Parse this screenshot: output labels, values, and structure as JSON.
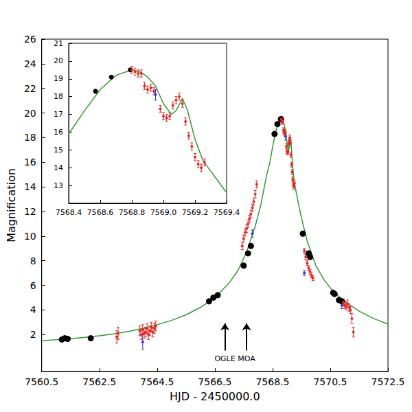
{
  "chart_data": [
    {
      "type": "scatter",
      "xlabel": "HJD - 2450000.0",
      "ylabel": "Magnification",
      "xlim": [
        7560.5,
        7572.5
      ],
      "xticks": [
        7560.5,
        7562.5,
        7564.5,
        7566.5,
        7568.5,
        7570.5,
        7572.5
      ],
      "ylim": [
        -1,
        26
      ],
      "yticks": [
        2,
        4,
        6,
        8,
        10,
        12,
        14,
        16,
        18,
        20,
        22,
        24,
        26
      ],
      "grid": false,
      "series": [
        {
          "type": "line",
          "color": "#339933",
          "line_style": "solid",
          "x": [
            7560.5,
            7561,
            7561.5,
            7562,
            7562.5,
            7563,
            7563.5,
            7564,
            7564.5,
            7565,
            7565.5,
            7566,
            7566.5,
            7567,
            7567.3,
            7567.6,
            7567.9,
            7568.1,
            7568.3,
            7568.4,
            7568.5,
            7568.6,
            7568.7,
            7568.8,
            7568.85,
            7568.9,
            7568.95,
            7569.0,
            7569.05,
            7569.08,
            7569.12,
            7569.15,
            7569.2,
            7569.25,
            7569.3,
            7569.4,
            7569.5,
            7569.7,
            7570,
            7570.3,
            7570.6,
            7571,
            7571.5,
            7572,
            7572.5
          ],
          "values": [
            1.5,
            1.58,
            1.67,
            1.77,
            1.9,
            2.05,
            2.25,
            2.5,
            2.8,
            3.15,
            3.6,
            4.2,
            5.0,
            6.2,
            7.2,
            8.7,
            10.8,
            12.6,
            15.0,
            15.9,
            17.2,
            18.4,
            19.2,
            19.5,
            19.4,
            19.1,
            18.6,
            17.6,
            17.0,
            17.2,
            17.9,
            17.3,
            15.6,
            14.4,
            13.8,
            12.6,
            11.5,
            9.6,
            7.6,
            6.4,
            5.5,
            4.7,
            3.9,
            3.3,
            2.85
          ]
        },
        {
          "type": "scatter",
          "color": "#000000",
          "marker": "circle",
          "x": [
            7561.2,
            7561.3,
            7561.4,
            7562.2,
            7566.3,
            7566.45,
            7566.6,
            7567.5,
            7567.65,
            7567.75,
            7568.57,
            7568.67,
            7568.79,
            7569.55,
            7569.75,
            7569.8,
            7570.6,
            7570.65,
            7570.8,
            7570.9
          ],
          "values": [
            1.6,
            1.7,
            1.65,
            1.7,
            4.7,
            5.0,
            5.2,
            7.6,
            8.6,
            9.2,
            18.3,
            19.1,
            19.5,
            10.2,
            8.6,
            8.3,
            5.4,
            5.3,
            4.8,
            4.7
          ]
        },
        {
          "type": "scatter",
          "color": "#ee2222",
          "marker": "circle",
          "x": [
            7563.1,
            7563.15,
            7563.9,
            7563.95,
            7564.0,
            7564.05,
            7564.1,
            7564.15,
            7564.2,
            7564.25,
            7564.3,
            7564.35,
            7564.4,
            7564.45,
            7567.45,
            7567.5,
            7567.55,
            7567.6,
            7567.65,
            7567.7,
            7567.75,
            7567.8,
            7567.85,
            7567.9,
            7567.95,
            7568.8,
            7568.82,
            7568.84,
            7568.86,
            7568.88,
            7568.9,
            7568.92,
            7568.94,
            7568.98,
            7569.0,
            7569.02,
            7569.04,
            7569.06,
            7569.08,
            7569.1,
            7569.12,
            7569.14,
            7569.16,
            7569.18,
            7569.2,
            7569.22,
            7569.24,
            7569.26,
            7569.6,
            7569.65,
            7569.7,
            7569.75,
            7569.8,
            7569.85,
            7569.9,
            7570.95,
            7571.0,
            7571.05,
            7571.1,
            7571.15,
            7571.2,
            7571.25,
            7571.3
          ],
          "values": [
            1.8,
            2.1,
            2.3,
            2.0,
            2.4,
            2.1,
            2.2,
            2.5,
            2.0,
            2.3,
            2.6,
            2.2,
            2.5,
            2.7,
            9.2,
            9.8,
            10.3,
            10.6,
            11.0,
            11.4,
            11.8,
            12.3,
            12.8,
            13.4,
            14.2,
            19.5,
            19.4,
            19.3,
            19.3,
            18.6,
            18.4,
            18.5,
            18.3,
            17.3,
            16.9,
            16.8,
            16.9,
            17.5,
            17.8,
            18.0,
            17.6,
            16.6,
            15.8,
            15.2,
            14.6,
            14.2,
            14.0,
            14.3,
            8.8,
            8.3,
            7.8,
            7.4,
            7.1,
            6.8,
            6.6,
            4.6,
            4.4,
            4.3,
            4.5,
            4.2,
            4.0,
            3.3,
            2.2
          ],
          "errors": [
            0.5,
            0.5,
            0.4,
            0.4,
            0.4,
            0.4,
            0.4,
            0.4,
            0.4,
            0.4,
            0.4,
            0.4,
            0.4,
            0.4,
            0.3,
            0.3,
            0.3,
            0.3,
            0.3,
            0.3,
            0.3,
            0.3,
            0.3,
            0.3,
            0.3,
            0.2,
            0.2,
            0.2,
            0.2,
            0.2,
            0.2,
            0.2,
            0.2,
            0.2,
            0.2,
            0.2,
            0.2,
            0.2,
            0.2,
            0.2,
            0.2,
            0.2,
            0.2,
            0.2,
            0.2,
            0.2,
            0.2,
            0.2,
            0.2,
            0.2,
            0.2,
            0.2,
            0.2,
            0.2,
            0.2,
            0.3,
            0.3,
            0.3,
            0.3,
            0.3,
            0.3,
            0.4,
            0.4
          ]
        },
        {
          "type": "scatter",
          "color": "#3333dd",
          "marker": "circle",
          "x": [
            7564.0,
            7567.8,
            7568.95,
            7569.6,
            7570.9
          ],
          "values": [
            1.4,
            10.2,
            18.1,
            7.0,
            4.4
          ],
          "errors": [
            0.6,
            0.3,
            0.3,
            0.2,
            0.3
          ]
        }
      ],
      "annotations": [
        {
          "text": "OGLE",
          "x": 7566.85,
          "y_from": 0.7,
          "y_to": 2.9
        },
        {
          "text": "MOA",
          "x": 7567.6,
          "y_from": 0.7,
          "y_to": 2.9
        }
      ]
    },
    {
      "type": "scatter",
      "xlim": [
        7568.4,
        7569.4
      ],
      "xticks": [
        7568.4,
        7568.6,
        7568.8,
        {
          "value": 7569.0,
          "label": "7569.0"
        },
        7569.2,
        7569.4
      ],
      "ylim": [
        12,
        21
      ],
      "yticks": [
        13,
        14,
        15,
        16,
        17,
        18,
        19,
        20,
        21
      ],
      "grid": false,
      "series": [
        {
          "type": "line",
          "color": "#339933",
          "line_style": "solid",
          "x": [
            7568.4,
            7568.5,
            7568.6,
            7568.7,
            7568.8,
            7568.85,
            7568.9,
            7568.95,
            7569.0,
            7569.05,
            7569.08,
            7569.12,
            7569.15,
            7569.2,
            7569.25,
            7569.3,
            7569.4
          ],
          "values": [
            15.9,
            17.2,
            18.4,
            19.2,
            19.5,
            19.4,
            19.1,
            18.6,
            17.6,
            17.0,
            17.2,
            17.9,
            17.3,
            15.6,
            14.4,
            13.8,
            12.6
          ]
        },
        {
          "type": "scatter",
          "color": "#000000",
          "marker": "circle",
          "x": [
            7568.57,
            7568.67,
            7568.79
          ],
          "values": [
            18.3,
            19.1,
            19.5
          ]
        },
        {
          "type": "scatter",
          "color": "#ee2222",
          "marker": "circle",
          "x": [
            7568.8,
            7568.82,
            7568.84,
            7568.86,
            7568.88,
            7568.9,
            7568.92,
            7568.94,
            7568.98,
            7569.0,
            7569.02,
            7569.04,
            7569.06,
            7569.08,
            7569.1,
            7569.12,
            7569.14,
            7569.16,
            7569.18,
            7569.2,
            7569.22,
            7569.24,
            7569.26
          ],
          "values": [
            19.5,
            19.4,
            19.3,
            19.3,
            18.6,
            18.4,
            18.5,
            18.3,
            17.3,
            16.9,
            16.8,
            16.9,
            17.5,
            17.8,
            18.0,
            17.6,
            16.6,
            15.8,
            15.2,
            14.6,
            14.2,
            14.0,
            14.3
          ],
          "errors": [
            0.2,
            0.2,
            0.2,
            0.2,
            0.2,
            0.2,
            0.2,
            0.2,
            0.2,
            0.2,
            0.2,
            0.2,
            0.2,
            0.2,
            0.2,
            0.2,
            0.2,
            0.2,
            0.2,
            0.2,
            0.2,
            0.2,
            0.2
          ]
        },
        {
          "type": "scatter",
          "color": "#3333dd",
          "marker": "circle",
          "x": [
            7568.95
          ],
          "values": [
            18.1
          ],
          "errors": [
            0.3
          ]
        }
      ]
    }
  ]
}
